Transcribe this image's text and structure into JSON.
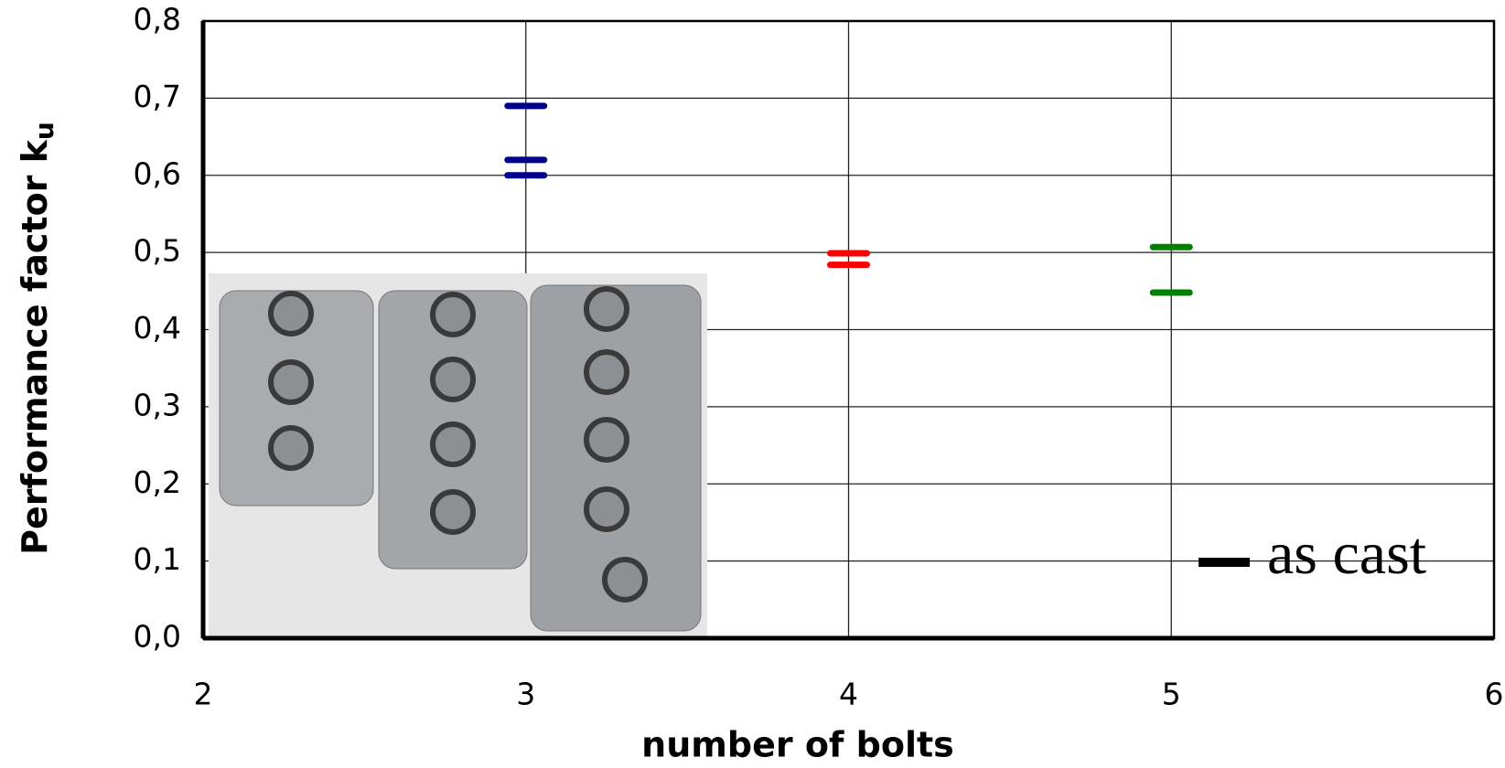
{
  "chart_data": {
    "type": "scatter",
    "x_label": "number of bolts",
    "y_label": "Performance factor k",
    "y_label_subscript": "u",
    "series": [
      {
        "color": "#00008b",
        "x": [
          3,
          3,
          3
        ],
        "values": [
          0.69,
          0.62,
          0.6
        ]
      },
      {
        "color": "#ff0000",
        "x": [
          4,
          4
        ],
        "values": [
          0.499,
          0.484
        ]
      },
      {
        "color": "#008000",
        "x": [
          5,
          5
        ],
        "values": [
          0.507,
          0.448
        ]
      }
    ],
    "xlim": [
      2,
      6
    ],
    "xticks": [
      2,
      3,
      4,
      5,
      6
    ],
    "ylim": [
      0,
      0.8
    ],
    "yticks": [
      {
        "value": 0,
        "label": "0,0"
      },
      {
        "value": 0.1,
        "label": "0,1"
      },
      {
        "value": 0.2,
        "label": "0,2"
      },
      {
        "value": 0.3,
        "label": "0,3"
      },
      {
        "value": 0.4,
        "label": "0,4"
      },
      {
        "value": 0.5,
        "label": "0,5"
      },
      {
        "value": 0.6,
        "label": "0,6"
      },
      {
        "value": 0.7,
        "label": "0,7"
      },
      {
        "value": 0.8,
        "label": "0,8"
      }
    ],
    "grid": true,
    "legend": {
      "label": "as cast",
      "color": "#000000",
      "position": "lower right"
    }
  }
}
